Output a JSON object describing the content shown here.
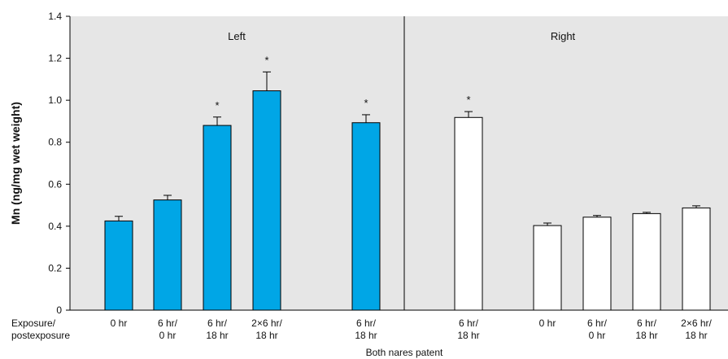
{
  "chart_data": {
    "type": "bar",
    "title": "",
    "ylabel": "Mn (ng/mg wet weight)",
    "xlabel": "Both nares patent",
    "x_row_label": [
      "Exposure/",
      "postexposure"
    ],
    "ylim": [
      0,
      1.4
    ],
    "yticks": [
      "0",
      "0.2",
      "0.4",
      "0.6",
      "0.8",
      "1.0",
      "1.2",
      "1.4"
    ],
    "ytick_values": [
      0,
      0.2,
      0.4,
      0.6,
      0.8,
      1.0,
      1.2,
      1.4
    ],
    "grid": false,
    "panels": [
      "Left",
      "Right"
    ],
    "colors": {
      "left": "#00a6e6",
      "right": "#ffffff",
      "edge": "#000000",
      "plot_bg": "#e6e6e6"
    },
    "categories": [
      [
        "0 hr"
      ],
      [
        "6 hr/",
        "0 hr"
      ],
      [
        "6 hr/",
        "18 hr"
      ],
      [
        "2×6 hr/",
        "18 hr"
      ],
      [
        "6 hr/",
        "18 hr"
      ],
      [
        "6 hr/",
        "18 hr"
      ],
      [
        "0 hr"
      ],
      [
        "6 hr/",
        "0 hr"
      ],
      [
        "6 hr/",
        "18 hr"
      ],
      [
        "2×6 hr/",
        "18 hr"
      ]
    ],
    "series": [
      {
        "name": "Left",
        "values": [
          0.425,
          0.525,
          0.88,
          1.045,
          0.893,
          null,
          null,
          null,
          null,
          null
        ],
        "errors": [
          0.022,
          0.022,
          0.04,
          0.09,
          0.038,
          null,
          null,
          null,
          null,
          null
        ]
      },
      {
        "name": "Right",
        "values": [
          null,
          null,
          null,
          null,
          null,
          0.918,
          0.403,
          0.443,
          0.46,
          0.487
        ],
        "errors": [
          null,
          null,
          null,
          null,
          null,
          0.028,
          0.012,
          0.008,
          0.006,
          0.01
        ]
      }
    ],
    "significant": [
      false,
      false,
      true,
      true,
      true,
      true,
      false,
      false,
      false,
      false
    ],
    "significance_marker": "*"
  }
}
